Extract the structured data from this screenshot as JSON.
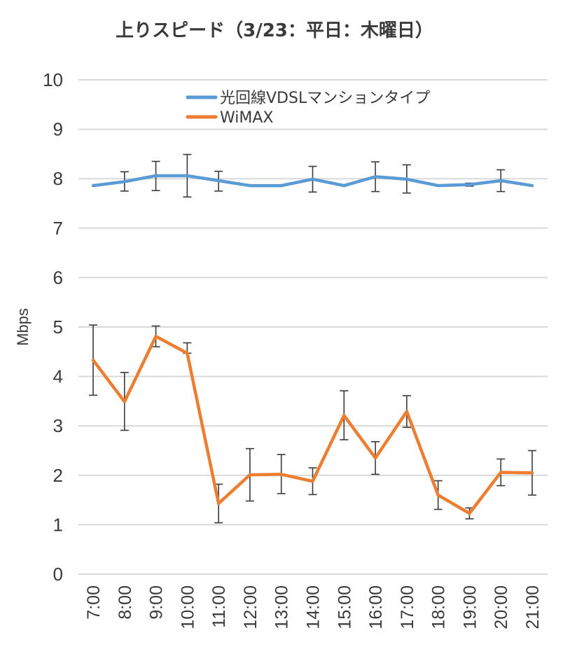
{
  "chart_data": {
    "type": "line",
    "title": "上りスピード（3/23：平日：木曜日）",
    "xlabel": "",
    "ylabel": "Mbps",
    "ylim": [
      0,
      10
    ],
    "yticks": [
      "0",
      "1",
      "2",
      "3",
      "4",
      "5",
      "6",
      "7",
      "8",
      "9",
      "10"
    ],
    "categories": [
      "7:00",
      "8:00",
      "9:00",
      "10:00",
      "11:00",
      "12:00",
      "13:00",
      "14:00",
      "15:00",
      "16:00",
      "17:00",
      "18:00",
      "19:00",
      "20:00",
      "21:00"
    ],
    "grid": true,
    "legend_position": "top-right",
    "series": [
      {
        "name": "光回線VDSLマンションタイプ",
        "color": "#5b9bd5",
        "values": [
          7.86,
          7.94,
          8.06,
          8.06,
          7.96,
          7.86,
          7.86,
          7.99,
          7.86,
          8.04,
          7.99,
          7.86,
          7.88,
          7.96,
          7.86
        ],
        "error_low": [
          7.86,
          7.75,
          7.76,
          7.63,
          7.75,
          7.86,
          7.86,
          7.73,
          7.86,
          7.74,
          7.71,
          7.86,
          7.85,
          7.74,
          7.86
        ],
        "error_high": [
          7.86,
          8.14,
          8.35,
          8.49,
          8.15,
          7.86,
          7.86,
          8.25,
          7.86,
          8.34,
          8.28,
          7.86,
          7.91,
          8.18,
          7.86
        ]
      },
      {
        "name": "WiMAX",
        "color": "#ed7d31",
        "values": [
          4.33,
          3.49,
          4.81,
          4.47,
          1.43,
          2.01,
          2.02,
          1.88,
          3.21,
          2.35,
          3.29,
          1.6,
          1.23,
          2.06,
          2.05
        ],
        "error_low": [
          3.62,
          2.91,
          4.6,
          4.47,
          1.04,
          1.48,
          1.63,
          1.61,
          2.72,
          2.02,
          2.97,
          1.31,
          1.12,
          1.79,
          1.6
        ],
        "error_high": [
          5.04,
          4.08,
          5.02,
          4.68,
          1.82,
          2.54,
          2.42,
          2.15,
          3.71,
          2.68,
          3.61,
          1.89,
          1.34,
          2.33,
          2.5
        ]
      }
    ]
  }
}
